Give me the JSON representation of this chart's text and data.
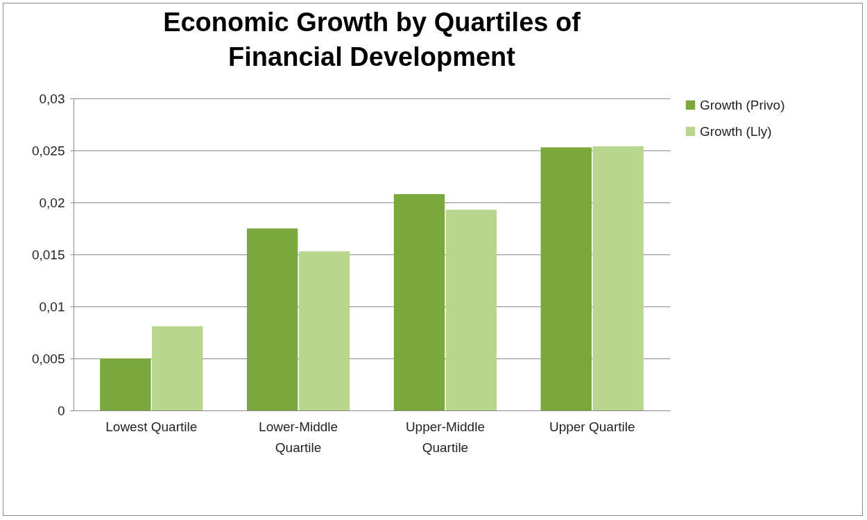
{
  "chart_data": {
    "type": "bar",
    "title": "Economic Growth by Quartiles of Financial Development",
    "categories": [
      "Lowest Quartile",
      "Lower-Middle Quartile",
      "Upper-Middle Quartile",
      "Upper Quartile"
    ],
    "series": [
      {
        "name": "Growth (Privo)",
        "color": "#7aa83c",
        "values": [
          0.005,
          0.0175,
          0.0208,
          0.0253
        ]
      },
      {
        "name": "Growth (Lly)",
        "color": "#b8d68e",
        "values": [
          0.0081,
          0.0153,
          0.0193,
          0.0254
        ]
      }
    ],
    "ylim": [
      0,
      0.03
    ],
    "yticks": [
      {
        "value": 0,
        "label": "0"
      },
      {
        "value": 0.005,
        "label": "0,005"
      },
      {
        "value": 0.01,
        "label": "0,01"
      },
      {
        "value": 0.015,
        "label": "0,015"
      },
      {
        "value": 0.02,
        "label": "0,02"
      },
      {
        "value": 0.025,
        "label": "0,025"
      },
      {
        "value": 0.03,
        "label": "0,03"
      }
    ],
    "grid": "y",
    "legend": "right"
  }
}
